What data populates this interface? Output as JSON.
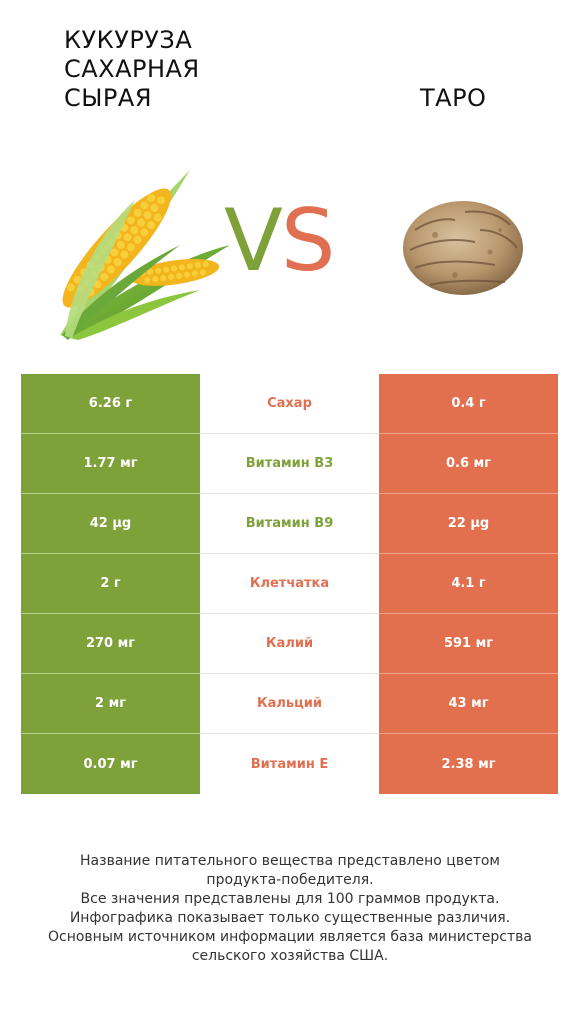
{
  "header": {
    "left_title": "КУКУРУЗА\nСАХАРНАЯ\nСЫРАЯ",
    "right_title": "ТАРО",
    "vs_v": "V",
    "vs_s": "S"
  },
  "colors": {
    "left_product": "#7fa13a",
    "right_product": "#e26f4e"
  },
  "rows": [
    {
      "left": "6.26 г",
      "name": "Сахар",
      "right": "0.4 г",
      "winner": "right"
    },
    {
      "left": "1.77 мг",
      "name": "Витамин B3",
      "right": "0.6 мг",
      "winner": "left"
    },
    {
      "left": "42 µg",
      "name": "Витамин B9",
      "right": "22 µg",
      "winner": "left"
    },
    {
      "left": "2 г",
      "name": "Клетчатка",
      "right": "4.1 г",
      "winner": "right"
    },
    {
      "left": "270 мг",
      "name": "Калий",
      "right": "591 мг",
      "winner": "right"
    },
    {
      "left": "2 мг",
      "name": "Кальций",
      "right": "43 мг",
      "winner": "right"
    },
    {
      "left": "0.07 мг",
      "name": "Витамин E",
      "right": "2.38 мг",
      "winner": "right"
    }
  ],
  "footnote": {
    "line1": "Название питательного вещества представлено цветом",
    "line2": "продукта-победителя.",
    "line3": "Все значения представлены для 100 граммов продукта.",
    "line4": "Инфографика показывает только существенные различия.",
    "line5": "Основным источником информации является база министерства",
    "line6": "сельского хозяйства США."
  }
}
